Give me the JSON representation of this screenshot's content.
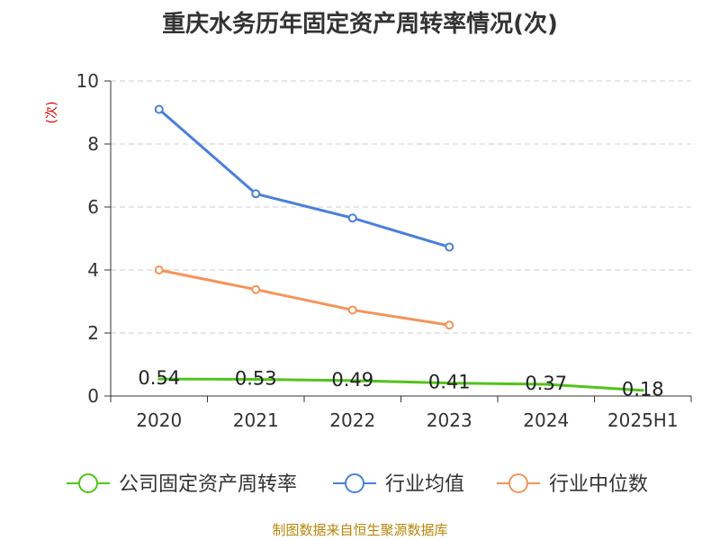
{
  "title": "重庆水务历年固定资产周转率情况(次)",
  "source": "制图数据来自恒生聚源数据库",
  "chart_data": {
    "type": "line",
    "categories": [
      "2020",
      "2021",
      "2022",
      "2023",
      "2024",
      "2025H1"
    ],
    "ylabel": "(次)",
    "ylim": [
      0,
      10
    ],
    "yticks": [
      0,
      2,
      4,
      6,
      8,
      10
    ],
    "grid": true,
    "legend_position": "bottom",
    "series": [
      {
        "name": "公司固定资产周转率",
        "color": "#52c41a",
        "values": [
          0.54,
          0.53,
          0.49,
          0.41,
          0.37,
          0.18
        ],
        "labels": [
          "0.54",
          "0.53",
          "0.49",
          "0.41",
          "0.37",
          "0.18"
        ],
        "show_markers": false
      },
      {
        "name": "行业均值",
        "color": "#4a7fd9",
        "values": [
          9.1,
          6.42,
          5.65,
          4.73,
          null,
          null
        ],
        "show_markers": true
      },
      {
        "name": "行业中位数",
        "color": "#f59358",
        "values": [
          4.0,
          3.38,
          2.73,
          2.25,
          null,
          null
        ],
        "show_markers": true
      }
    ]
  }
}
